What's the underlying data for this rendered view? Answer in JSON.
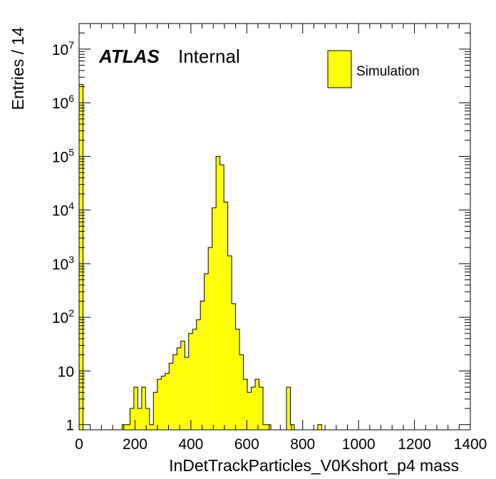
{
  "chart_data": {
    "type": "bar",
    "style": "histogram",
    "fill_color": "#ffff00",
    "edge_color": "#000000",
    "xlabel": "InDetTrackParticles_V0Kshort_p4 mass",
    "ylabel": "Entries / 14",
    "x_range": [
      0,
      1400
    ],
    "y_range": [
      0.8,
      30000000
    ],
    "y_scale": "log",
    "bin_width": 14,
    "x_ticks": [
      "0",
      "200",
      "400",
      "600",
      "800",
      "1000",
      "1200",
      "1400"
    ],
    "y_ticks": [
      {
        "mant": "1",
        "exp": ""
      },
      {
        "mant": "10",
        "exp": ""
      },
      {
        "mant": "10",
        "exp": "2"
      },
      {
        "mant": "10",
        "exp": "3"
      },
      {
        "mant": "10",
        "exp": "4"
      },
      {
        "mant": "10",
        "exp": "5"
      },
      {
        "mant": "10",
        "exp": "6"
      },
      {
        "mant": "10",
        "exp": "7"
      }
    ],
    "bins": [
      {
        "x": 0,
        "y": 2200000
      },
      {
        "x": 154,
        "y": 1
      },
      {
        "x": 168,
        "y": 1
      },
      {
        "x": 182,
        "y": 2
      },
      {
        "x": 196,
        "y": 5
      },
      {
        "x": 210,
        "y": 2
      },
      {
        "x": 224,
        "y": 5
      },
      {
        "x": 238,
        "y": 2
      },
      {
        "x": 252,
        "y": 1
      },
      {
        "x": 266,
        "y": 4
      },
      {
        "x": 280,
        "y": 7
      },
      {
        "x": 294,
        "y": 8
      },
      {
        "x": 308,
        "y": 9
      },
      {
        "x": 322,
        "y": 14
      },
      {
        "x": 336,
        "y": 20
      },
      {
        "x": 350,
        "y": 27
      },
      {
        "x": 364,
        "y": 36
      },
      {
        "x": 378,
        "y": 18
      },
      {
        "x": 392,
        "y": 50
      },
      {
        "x": 406,
        "y": 60
      },
      {
        "x": 420,
        "y": 90
      },
      {
        "x": 434,
        "y": 200
      },
      {
        "x": 448,
        "y": 650
      },
      {
        "x": 462,
        "y": 2000
      },
      {
        "x": 476,
        "y": 11000
      },
      {
        "x": 490,
        "y": 100000
      },
      {
        "x": 504,
        "y": 70000
      },
      {
        "x": 518,
        "y": 14000
      },
      {
        "x": 532,
        "y": 1400
      },
      {
        "x": 546,
        "y": 180
      },
      {
        "x": 560,
        "y": 60
      },
      {
        "x": 574,
        "y": 20
      },
      {
        "x": 588,
        "y": 7
      },
      {
        "x": 602,
        "y": 4
      },
      {
        "x": 616,
        "y": 5
      },
      {
        "x": 630,
        "y": 7
      },
      {
        "x": 644,
        "y": 5
      },
      {
        "x": 658,
        "y": 1
      },
      {
        "x": 672,
        "y": 1
      },
      {
        "x": 742,
        "y": 5
      },
      {
        "x": 756,
        "y": 1
      },
      {
        "x": 854,
        "y": 1
      }
    ],
    "legend": {
      "label": "Simulation",
      "position": "top-right"
    },
    "annotation": {
      "bold": "ATLAS",
      "rest": "Internal"
    }
  }
}
